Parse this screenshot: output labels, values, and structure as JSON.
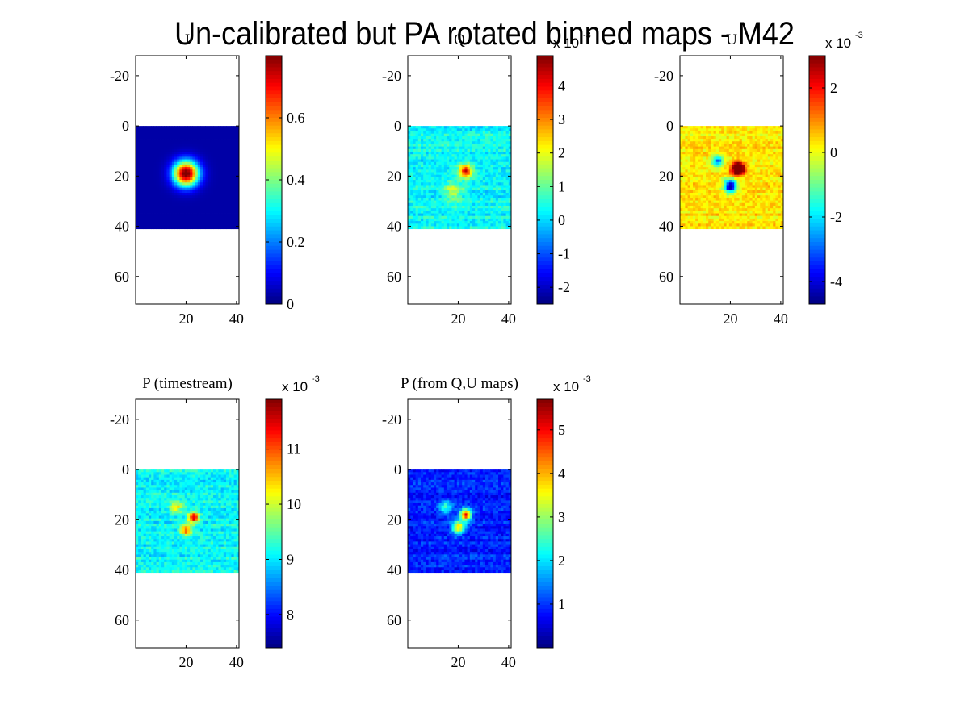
{
  "figure": {
    "title": "Un-calibrated but PA rotated binned maps - M42"
  },
  "colormap": "jet",
  "chart_data": [
    {
      "type": "heatmap",
      "title": "I",
      "data_extent_x": [
        0,
        41
      ],
      "data_extent_y": [
        0,
        41
      ],
      "xlim": [
        0,
        41
      ],
      "ylim": [
        -28,
        71
      ],
      "x_ticks": [
        "20",
        "40"
      ],
      "y_ticks": [
        "-20",
        "0",
        "20",
        "40",
        "60"
      ],
      "colorbar_range": [
        0,
        0.8
      ],
      "colorbar_ticks": [
        "0",
        "0.2",
        "0.4",
        "0.6"
      ],
      "colorbar_multiplier": "",
      "features": [
        {
          "kind": "gaussian",
          "x": 20,
          "y": 19,
          "amplitude": 0.8,
          "sigma": 3.5
        }
      ],
      "background": 0.03,
      "noise": 0.0
    },
    {
      "type": "heatmap",
      "title": "Q",
      "data_extent_x": [
        0,
        41
      ],
      "data_extent_y": [
        0,
        41
      ],
      "xlim": [
        0,
        41
      ],
      "ylim": [
        -28,
        71
      ],
      "x_ticks": [
        "20",
        "40"
      ],
      "y_ticks": [
        "-20",
        "0",
        "20",
        "40",
        "60"
      ],
      "colorbar_range": [
        -2.5,
        4.9
      ],
      "colorbar_ticks": [
        "-2",
        "-1",
        "0",
        "1",
        "2",
        "3",
        "4"
      ],
      "colorbar_multiplier": "x 10",
      "colorbar_exponent": "-3",
      "features": [
        {
          "kind": "gaussian",
          "x": 23,
          "y": 18,
          "amplitude": 4.0,
          "sigma": 1.8
        },
        {
          "kind": "gaussian",
          "x": 18,
          "y": 26,
          "amplitude": 1.5,
          "sigma": 2.5
        }
      ],
      "background": 0.3,
      "noise": 0.8
    },
    {
      "type": "heatmap",
      "title": "U",
      "data_extent_x": [
        0,
        41
      ],
      "data_extent_y": [
        0,
        41
      ],
      "xlim": [
        0,
        41
      ],
      "ylim": [
        -28,
        71
      ],
      "x_ticks": [
        "20",
        "40"
      ],
      "y_ticks": [
        "-20",
        "0",
        "20",
        "40",
        "60"
      ],
      "colorbar_range": [
        -4.7,
        3.0
      ],
      "colorbar_ticks": [
        "-4",
        "-2",
        "0",
        "2"
      ],
      "colorbar_multiplier": "x 10",
      "colorbar_exponent": "-3",
      "features": [
        {
          "kind": "gaussian",
          "x": 23,
          "y": 17,
          "amplitude": 5.0,
          "sigma": 1.8
        },
        {
          "kind": "gaussian",
          "x": 20,
          "y": 24,
          "amplitude": -5.0,
          "sigma": 1.8
        },
        {
          "kind": "gaussian",
          "x": 15,
          "y": 14,
          "amplitude": -3.0,
          "sigma": 1.5
        }
      ],
      "background": 0.3,
      "noise": 0.8
    },
    {
      "type": "heatmap",
      "title": "P (timestream)",
      "data_extent_x": [
        0,
        41
      ],
      "data_extent_y": [
        0,
        41
      ],
      "xlim": [
        0,
        41
      ],
      "ylim": [
        -28,
        71
      ],
      "x_ticks": [
        "20",
        "40"
      ],
      "y_ticks": [
        "-20",
        "0",
        "20",
        "40",
        "60"
      ],
      "colorbar_range": [
        7.4,
        11.9
      ],
      "colorbar_ticks": [
        "8",
        "9",
        "10",
        "11"
      ],
      "colorbar_multiplier": "x 10",
      "colorbar_exponent": "-3",
      "features": [
        {
          "kind": "gaussian",
          "x": 23,
          "y": 19,
          "amplitude": 2.5,
          "sigma": 1.5
        },
        {
          "kind": "gaussian",
          "x": 20,
          "y": 24,
          "amplitude": 2.0,
          "sigma": 1.5
        },
        {
          "kind": "gaussian",
          "x": 16,
          "y": 15,
          "amplitude": 1.2,
          "sigma": 1.8
        }
      ],
      "background": 9.1,
      "noise": 0.5
    },
    {
      "type": "heatmap",
      "title": "P (from Q,U maps)",
      "data_extent_x": [
        0,
        41
      ],
      "data_extent_y": [
        0,
        41
      ],
      "xlim": [
        0,
        41
      ],
      "ylim": [
        -28,
        71
      ],
      "x_ticks": [
        "20",
        "40"
      ],
      "y_ticks": [
        "-20",
        "0",
        "20",
        "40",
        "60"
      ],
      "colorbar_range": [
        0,
        5.7
      ],
      "colorbar_ticks": [
        "1",
        "2",
        "3",
        "4",
        "5"
      ],
      "colorbar_multiplier": "x 10",
      "colorbar_exponent": "-3",
      "features": [
        {
          "kind": "gaussian",
          "x": 23,
          "y": 18,
          "amplitude": 4.0,
          "sigma": 1.6
        },
        {
          "kind": "gaussian",
          "x": 20,
          "y": 23,
          "amplitude": 3.0,
          "sigma": 1.8
        },
        {
          "kind": "gaussian",
          "x": 15,
          "y": 15,
          "amplitude": 1.5,
          "sigma": 1.8
        }
      ],
      "background": 0.9,
      "noise": 0.6
    }
  ]
}
